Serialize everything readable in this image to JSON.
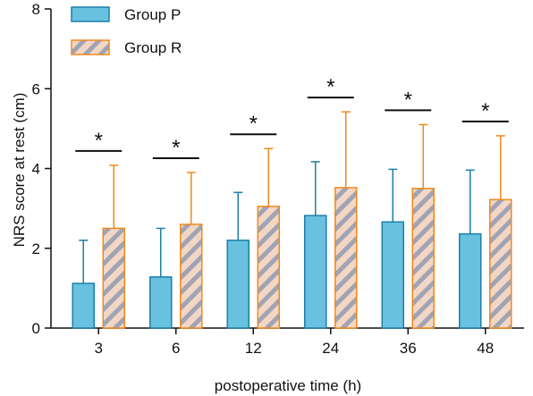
{
  "chart_data": {
    "type": "bar",
    "categories": [
      "3",
      "6",
      "12",
      "24",
      "36",
      "48"
    ],
    "series": [
      {
        "name": "Group P",
        "values": [
          1.12,
          1.28,
          2.2,
          2.82,
          2.66,
          2.36
        ],
        "error": [
          1.08,
          1.22,
          1.2,
          1.35,
          1.32,
          1.6
        ],
        "fill": "#69c1e0",
        "stroke": "#1a7fa8"
      },
      {
        "name": "Group R",
        "values": [
          2.5,
          2.6,
          3.05,
          3.52,
          3.5,
          3.22
        ],
        "error": [
          1.58,
          1.3,
          1.45,
          1.9,
          1.6,
          1.6
        ],
        "fill": "#f3d6c4",
        "stroke": "#f08a1e",
        "hatch": "#a0a4b4"
      }
    ],
    "significance": [
      "*",
      "*",
      "*",
      "*",
      "*",
      "*"
    ],
    "xlabel": "postoperative time (h)",
    "ylabel": "NRS score at rest (cm)",
    "ylim": [
      0,
      8
    ],
    "yticks": [
      "0",
      "2",
      "4",
      "6",
      "8"
    ],
    "legend": "top-left",
    "grid": false
  }
}
